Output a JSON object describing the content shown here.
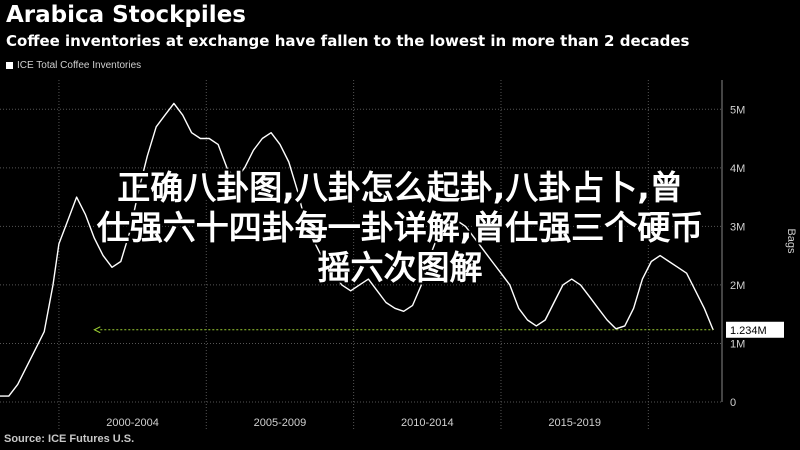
{
  "header": {
    "title": "Arabica Stockpiles",
    "subtitle": "Coffee inventories at exchange have fallen to the lowest in more than 2 decades"
  },
  "legend": {
    "label": "ICE Total Coffee Inventories"
  },
  "overlay": {
    "line1": "正确八卦图,八卦怎么起卦,八卦占卜,曾",
    "line2": "仕强六十四卦每一卦详解,曾仕强三个硬币",
    "line3": "摇六次图解"
  },
  "source": "Source: ICE Futures U.S.",
  "colors": {
    "background": "#000000",
    "line": "#ffffff",
    "reference_line": "#9acd32",
    "grid": "#555555"
  },
  "chart_data": {
    "type": "line",
    "title": "Arabica Stockpiles",
    "subtitle": "Coffee inventories at exchange have fallen to the lowest in more than 2 decades",
    "ylabel": "Bags",
    "ylim": [
      0,
      5.5
    ],
    "y_ticks": [
      0,
      1,
      2,
      3,
      4,
      5
    ],
    "y_tick_labels": [
      "0",
      "1M",
      "2M",
      "3M",
      "4M",
      "5M"
    ],
    "x_tick_labels": [
      "2000-2004",
      "2005-2009",
      "2010-2014",
      "2015-2019"
    ],
    "x_range": [
      1998.0,
      2022.5
    ],
    "x_period_starts": [
      2000,
      2005,
      2010,
      2015,
      2020
    ],
    "grid": true,
    "legend_position": "top-left",
    "last_value_label": "1.234M",
    "last_value": 1.234,
    "series": [
      {
        "name": "ICE Total Coffee Inventories",
        "x": [
          1998.0,
          1998.3,
          1998.6,
          1998.9,
          1999.2,
          1999.5,
          1999.8,
          2000.0,
          2000.3,
          2000.6,
          2000.9,
          2001.2,
          2001.5,
          2001.8,
          2002.1,
          2002.4,
          2002.7,
          2003.0,
          2003.3,
          2003.6,
          2003.9,
          2004.2,
          2004.5,
          2004.8,
          2005.1,
          2005.4,
          2005.7,
          2006.0,
          2006.3,
          2006.6,
          2006.9,
          2007.2,
          2007.5,
          2007.8,
          2008.1,
          2008.4,
          2008.7,
          2009.0,
          2009.3,
          2009.6,
          2009.9,
          2010.2,
          2010.5,
          2010.8,
          2011.1,
          2011.4,
          2011.7,
          2012.0,
          2012.3,
          2012.6,
          2012.9,
          2013.2,
          2013.5,
          2013.8,
          2014.1,
          2014.4,
          2014.7,
          2015.0,
          2015.3,
          2015.6,
          2015.9,
          2016.2,
          2016.5,
          2016.8,
          2017.1,
          2017.4,
          2017.7,
          2018.0,
          2018.3,
          2018.6,
          2018.9,
          2019.2,
          2019.5,
          2019.8,
          2020.1,
          2020.4,
          2020.7,
          2021.0,
          2021.3,
          2021.6,
          2021.9,
          2022.2
        ],
        "values": [
          0.1,
          0.1,
          0.3,
          0.6,
          0.9,
          1.2,
          2.0,
          2.7,
          3.1,
          3.5,
          3.2,
          2.8,
          2.5,
          2.3,
          2.4,
          2.9,
          3.6,
          4.2,
          4.7,
          4.9,
          5.1,
          4.9,
          4.6,
          4.5,
          4.5,
          4.4,
          4.0,
          3.8,
          4.0,
          4.3,
          4.5,
          4.6,
          4.4,
          4.1,
          3.6,
          3.0,
          2.7,
          2.4,
          2.2,
          2.0,
          1.9,
          2.0,
          2.1,
          1.9,
          1.7,
          1.6,
          1.55,
          1.65,
          2.0,
          2.5,
          2.9,
          3.05,
          3.1,
          3.0,
          2.8,
          2.6,
          2.4,
          2.2,
          2.0,
          1.6,
          1.4,
          1.3,
          1.4,
          1.7,
          2.0,
          2.1,
          2.0,
          1.8,
          1.6,
          1.4,
          1.25,
          1.3,
          1.6,
          2.1,
          2.4,
          2.5,
          2.4,
          2.3,
          2.2,
          1.9,
          1.6,
          1.23
        ]
      }
    ]
  }
}
